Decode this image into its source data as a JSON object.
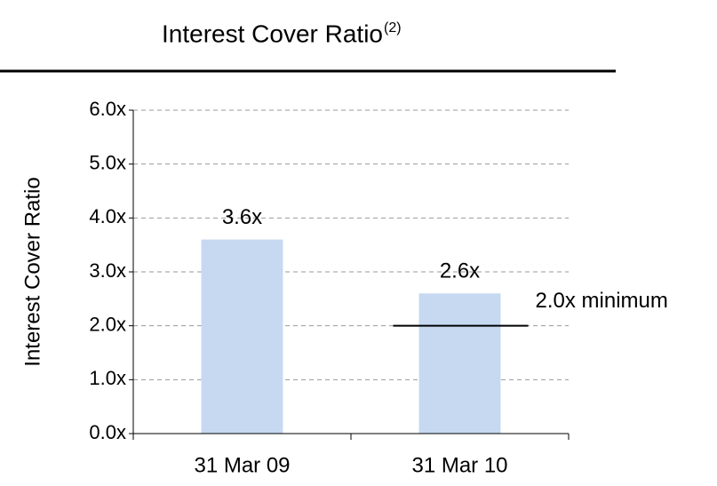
{
  "chart_data": {
    "type": "bar",
    "title": "Interest Cover Ratio",
    "title_note": "(2)",
    "y_label": "Interest Cover Ratio",
    "categories": [
      "31 Mar 09",
      "31 Mar 10"
    ],
    "values": [
      3.6,
      2.6
    ],
    "value_labels": [
      "3.6x",
      "2.6x"
    ],
    "color": "#c6d9f1",
    "ylim": [
      0,
      6
    ],
    "yticks": [
      {
        "value": 0,
        "label": "0.0x"
      },
      {
        "value": 1,
        "label": "1.0x"
      },
      {
        "value": 2,
        "label": "2.0x"
      },
      {
        "value": 3,
        "label": "3.0x"
      },
      {
        "value": 4,
        "label": "4.0x"
      },
      {
        "value": 5,
        "label": "5.0x"
      },
      {
        "value": 6,
        "label": "6.0x"
      }
    ],
    "grid": true,
    "threshold": {
      "value": 2,
      "label": "2.0x minimum"
    }
  }
}
